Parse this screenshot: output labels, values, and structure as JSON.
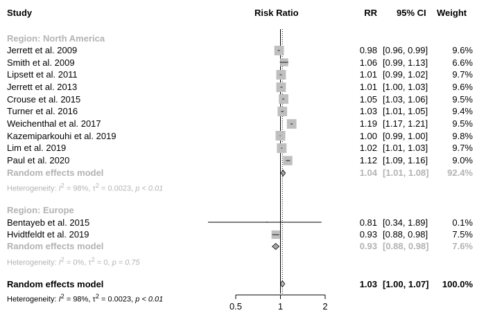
{
  "headers": {
    "study": "Study",
    "risk_ratio": "Risk Ratio",
    "rr": "RR",
    "ci": "95% CI",
    "weight": "Weight"
  },
  "groups": [
    {
      "label": "Region: North America",
      "model_label": "Random effects model",
      "model_rr": "1.04",
      "model_ci": "[1.01, 1.08]",
      "model_weight": "92.4%",
      "heterogeneity": {
        "i2": "98%",
        "tau2": "0.0023",
        "p": "p < 0.01"
      }
    },
    {
      "label": "Region: Europe",
      "model_label": "Random effects model",
      "model_rr": "0.93",
      "model_ci": "[0.88, 0.98]",
      "model_weight": "7.6%",
      "heterogeneity": {
        "i2": "0%",
        "tau2": "0",
        "p": "p = 0.75"
      }
    }
  ],
  "overall": {
    "label": "Random effects model",
    "rr": "1.03",
    "ci": "[1.00, 1.07]",
    "weight": "100.0%",
    "heterogeneity": {
      "i2": "98%",
      "tau2": "0.0023",
      "p": "p < 0.01"
    }
  },
  "chart_data": {
    "type": "forest",
    "xscale": "log",
    "xlim": [
      0.5,
      2
    ],
    "xticks": [
      "0.5",
      "1",
      "2"
    ],
    "reference_line": 1,
    "studies": [
      {
        "study": "Jerrett et al. 2009",
        "group": 0,
        "rr": 0.98,
        "lo": 0.96,
        "hi": 0.99,
        "weight": 9.6,
        "rr_text": "0.98",
        "ci_text": "[0.96, 0.99]",
        "weight_text": "9.6%"
      },
      {
        "study": "Smith et al. 2009",
        "group": 0,
        "rr": 1.06,
        "lo": 0.99,
        "hi": 1.13,
        "weight": 6.6,
        "rr_text": "1.06",
        "ci_text": "[0.99, 1.13]",
        "weight_text": "6.6%"
      },
      {
        "study": "Lipsett et al. 2011",
        "group": 0,
        "rr": 1.01,
        "lo": 0.99,
        "hi": 1.02,
        "weight": 9.7,
        "rr_text": "1.01",
        "ci_text": "[0.99, 1.02]",
        "weight_text": "9.7%"
      },
      {
        "study": "Jerrett et al. 2013",
        "group": 0,
        "rr": 1.01,
        "lo": 1.0,
        "hi": 1.03,
        "weight": 9.6,
        "rr_text": "1.01",
        "ci_text": "[1.00, 1.03]",
        "weight_text": "9.6%"
      },
      {
        "study": "Crouse et al. 2015",
        "group": 0,
        "rr": 1.05,
        "lo": 1.03,
        "hi": 1.06,
        "weight": 9.5,
        "rr_text": "1.05",
        "ci_text": "[1.03, 1.06]",
        "weight_text": "9.5%"
      },
      {
        "study": "Turner et al. 2016",
        "group": 0,
        "rr": 1.03,
        "lo": 1.01,
        "hi": 1.05,
        "weight": 9.4,
        "rr_text": "1.03",
        "ci_text": "[1.01, 1.05]",
        "weight_text": "9.4%"
      },
      {
        "study": "Weichenthal et al. 2017",
        "group": 0,
        "rr": 1.19,
        "lo": 1.17,
        "hi": 1.21,
        "weight": 9.5,
        "rr_text": "1.19",
        "ci_text": "[1.17, 1.21]",
        "weight_text": "9.5%"
      },
      {
        "study": "Kazemiparkouhi et al. 2019",
        "group": 0,
        "rr": 1.0,
        "lo": 0.99,
        "hi": 1.0,
        "weight": 9.8,
        "rr_text": "1.00",
        "ci_text": "[0.99, 1.00]",
        "weight_text": "9.8%"
      },
      {
        "study": "Lim et al. 2019",
        "group": 0,
        "rr": 1.02,
        "lo": 1.01,
        "hi": 1.03,
        "weight": 9.7,
        "rr_text": "1.02",
        "ci_text": "[1.01, 1.03]",
        "weight_text": "9.7%"
      },
      {
        "study": "Paul et al. 2020",
        "group": 0,
        "rr": 1.12,
        "lo": 1.09,
        "hi": 1.16,
        "weight": 9.0,
        "rr_text": "1.12",
        "ci_text": "[1.09, 1.16]",
        "weight_text": "9.0%"
      },
      {
        "study": "Bentayeb et al. 2015",
        "group": 1,
        "rr": 0.81,
        "lo": 0.34,
        "hi": 1.89,
        "weight": 0.1,
        "rr_text": "0.81",
        "ci_text": "[0.34, 1.89]",
        "weight_text": "0.1%"
      },
      {
        "study": "Hvidtfeldt et al. 2019",
        "group": 1,
        "rr": 0.93,
        "lo": 0.88,
        "hi": 0.98,
        "weight": 7.5,
        "rr_text": "0.93",
        "ci_text": "[0.88, 0.98]",
        "weight_text": "7.5%"
      }
    ],
    "pooled": [
      {
        "label": "Random effects model (North America)",
        "rr": 1.04,
        "lo": 1.01,
        "hi": 1.08
      },
      {
        "label": "Random effects model (Europe)",
        "rr": 0.93,
        "lo": 0.88,
        "hi": 0.98
      },
      {
        "label": "Random effects model (overall)",
        "rr": 1.03,
        "lo": 1.0,
        "hi": 1.07
      }
    ],
    "colors": {
      "box": "#bfbfbf",
      "subgroup_text": "#b3b3b3",
      "line": "#000000"
    }
  }
}
